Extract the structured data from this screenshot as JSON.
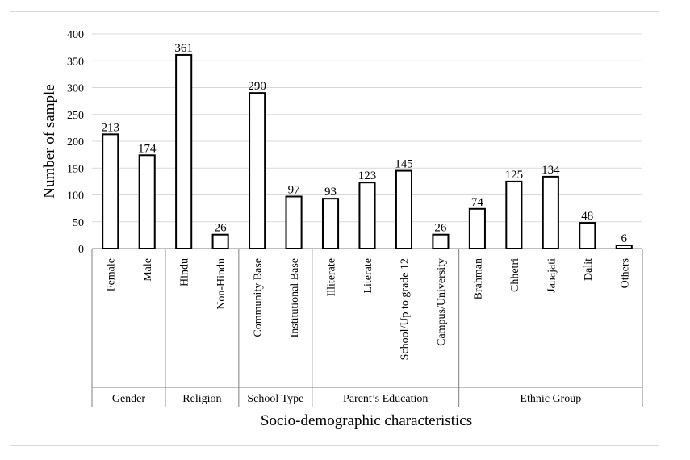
{
  "chart_data": {
    "type": "bar",
    "title": "",
    "xlabel": "Socio-demographic characteristics",
    "ylabel": "Number of sample",
    "ylim": [
      0,
      400
    ],
    "yticks": [
      0,
      50,
      100,
      150,
      200,
      250,
      300,
      350,
      400
    ],
    "grid": true,
    "groups": [
      {
        "name": "Gender",
        "categories": [
          "Female",
          "Male"
        ],
        "values": [
          213,
          174
        ]
      },
      {
        "name": "Religion",
        "categories": [
          "Hindu",
          "Non-Hindu"
        ],
        "values": [
          361,
          26
        ]
      },
      {
        "name": "School Type",
        "categories": [
          "Community Base",
          "Institutional Base"
        ],
        "values": [
          290,
          97
        ]
      },
      {
        "name": "Parent’s Education",
        "categories": [
          "Illiterate",
          "Literate",
          "School/Up to grade 12",
          "Campus/University"
        ],
        "values": [
          93,
          123,
          145,
          26
        ]
      },
      {
        "name": "Ethnic Group",
        "categories": [
          "Brahman",
          "Chhetri",
          "Janajati",
          "Dalit",
          "Others"
        ],
        "values": [
          74,
          125,
          134,
          48,
          6
        ]
      }
    ],
    "colors": {
      "bar_fill": "#ffffff",
      "bar_stroke": "#000000",
      "grid": "#d9d9d9",
      "axis": "#7f7f7f"
    }
  }
}
